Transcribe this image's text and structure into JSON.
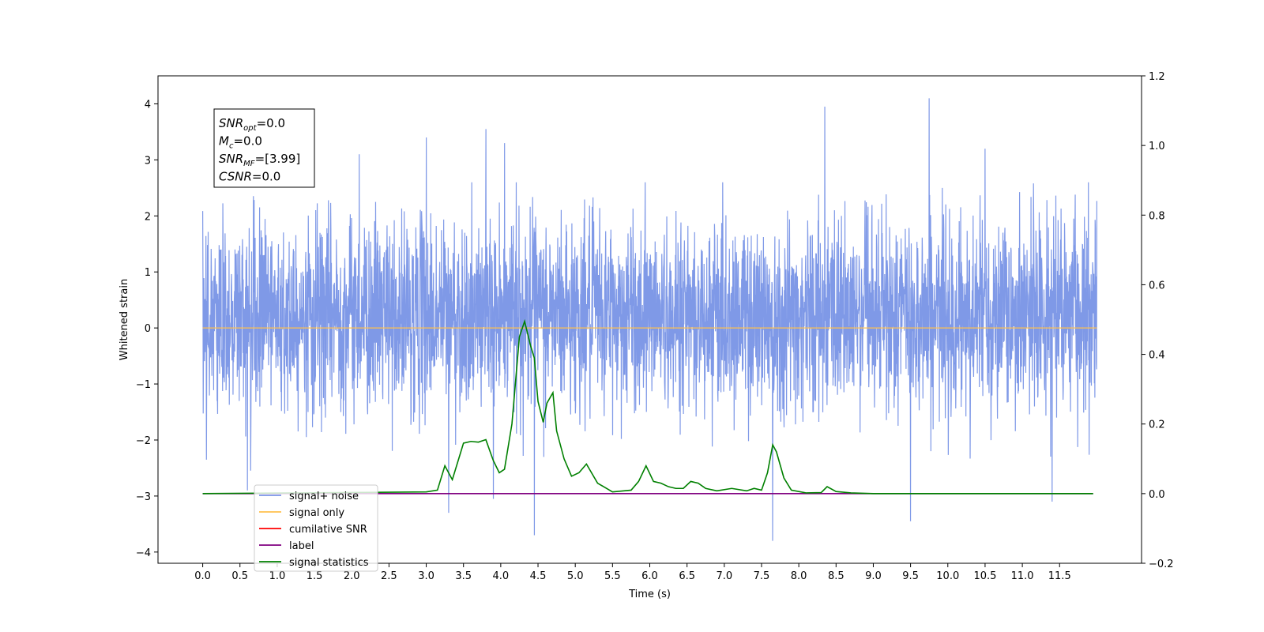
{
  "chart_data": {
    "type": "line",
    "xlabel": "Time (s)",
    "ylabel": "Whitened strain",
    "xlim": [
      -0.6,
      12.6
    ],
    "ylim": [
      -4.2,
      4.5
    ],
    "ylim_right": [
      -0.2,
      1.2
    ],
    "x_ticks": [
      0.0,
      0.5,
      1.0,
      1.5,
      2.0,
      2.5,
      3.0,
      3.5,
      4.0,
      4.5,
      5.0,
      5.5,
      6.0,
      6.5,
      7.0,
      7.5,
      8.0,
      8.5,
      9.0,
      9.5,
      10.0,
      10.5,
      11.0,
      11.5
    ],
    "x_tick_labels": [
      "0.0",
      "0.5",
      "1.0",
      "1.5",
      "2.0",
      "2.5",
      "3.0",
      "3.5",
      "4.0",
      "4.5",
      "5.0",
      "5.5",
      "6.0",
      "6.5",
      "7.0",
      "7.5",
      "8.0",
      "8.5",
      "9.0",
      "9.5",
      "10.0",
      "10.5",
      "11.0",
      "11.5"
    ],
    "y_ticks": [
      -4,
      -3,
      -2,
      -1,
      0,
      1,
      2,
      3,
      4
    ],
    "y_tick_labels": [
      "−4",
      "−3",
      "−2",
      "−1",
      "0",
      "1",
      "2",
      "3",
      "4"
    ],
    "y_ticks_right": [
      -0.2,
      0.0,
      0.2,
      0.4,
      0.6,
      0.8,
      1.0,
      1.2
    ],
    "y_tick_labels_right": [
      "−0.2",
      "0.0",
      "0.2",
      "0.4",
      "0.6",
      "0.8",
      "1.0",
      "1.2"
    ],
    "legend_placement": "lower-left",
    "grid": false,
    "info_box": [
      {
        "main": "SNR",
        "sub": "opt",
        "value": "=0.0"
      },
      {
        "main": "M",
        "sub": "c",
        "value": "=0.0"
      },
      {
        "main": "SNR",
        "sub": "MF",
        "value": "=[3.99]"
      },
      {
        "main": "CSNR",
        "sub": "",
        "value": "=0.0"
      }
    ],
    "series": [
      {
        "name": "signal+ noise",
        "color": "#7894e6",
        "axis": "left",
        "kind": "noise",
        "x_range": [
          0.0,
          12.0
        ],
        "envelope": [
          -2.6,
          2.6
        ],
        "spikes": [
          {
            "x": 0.6,
            "y": -2.9
          },
          {
            "x": 3.0,
            "y": 3.4
          },
          {
            "x": 3.3,
            "y": -3.3
          },
          {
            "x": 3.8,
            "y": 3.55
          },
          {
            "x": 3.9,
            "y": -3.05
          },
          {
            "x": 4.05,
            "y": 3.3
          },
          {
            "x": 4.45,
            "y": -3.7
          },
          {
            "x": 7.65,
            "y": -3.8
          },
          {
            "x": 8.35,
            "y": 3.95
          },
          {
            "x": 9.5,
            "y": -3.45
          },
          {
            "x": 9.75,
            "y": 4.1
          },
          {
            "x": 11.4,
            "y": -3.1
          },
          {
            "x": 10.5,
            "y": 3.2
          },
          {
            "x": 2.1,
            "y": 3.1
          }
        ]
      },
      {
        "name": "signal only",
        "color": "#ffc04d",
        "axis": "left",
        "x": [
          0.0,
          12.0
        ],
        "y": [
          0.0,
          0.0
        ]
      },
      {
        "name": "cumilative SNR",
        "color": "#ff0000",
        "axis": "right",
        "x": [],
        "y": []
      },
      {
        "name": "label",
        "color": "#800080",
        "axis": "right",
        "x": [
          0.0,
          11.95
        ],
        "y": [
          0.0,
          0.0
        ]
      },
      {
        "name": "signal statistics",
        "color": "#008000",
        "axis": "right",
        "x": [
          0.0,
          3.0,
          3.15,
          3.25,
          3.35,
          3.45,
          3.5,
          3.6,
          3.7,
          3.8,
          3.9,
          3.98,
          4.05,
          4.15,
          4.25,
          4.32,
          4.4,
          4.45,
          4.5,
          4.57,
          4.62,
          4.7,
          4.75,
          4.85,
          4.95,
          5.05,
          5.15,
          5.3,
          5.5,
          5.75,
          5.85,
          5.95,
          6.05,
          6.15,
          6.25,
          6.35,
          6.45,
          6.55,
          6.65,
          6.75,
          6.9,
          7.1,
          7.3,
          7.4,
          7.5,
          7.58,
          7.65,
          7.7,
          7.8,
          7.9,
          8.1,
          8.3,
          8.38,
          8.5,
          8.7,
          9.0,
          11.95
        ],
        "y": [
          0.0,
          0.005,
          0.01,
          0.08,
          0.04,
          0.11,
          0.145,
          0.15,
          0.148,
          0.155,
          0.095,
          0.06,
          0.07,
          0.2,
          0.45,
          0.495,
          0.425,
          0.39,
          0.265,
          0.205,
          0.26,
          0.29,
          0.18,
          0.1,
          0.05,
          0.06,
          0.085,
          0.03,
          0.005,
          0.01,
          0.035,
          0.08,
          0.035,
          0.03,
          0.02,
          0.015,
          0.015,
          0.035,
          0.03,
          0.015,
          0.008,
          0.015,
          0.008,
          0.015,
          0.01,
          0.06,
          0.14,
          0.12,
          0.045,
          0.01,
          0.002,
          0.003,
          0.02,
          0.006,
          0.002,
          0.0,
          0.0
        ]
      }
    ]
  }
}
